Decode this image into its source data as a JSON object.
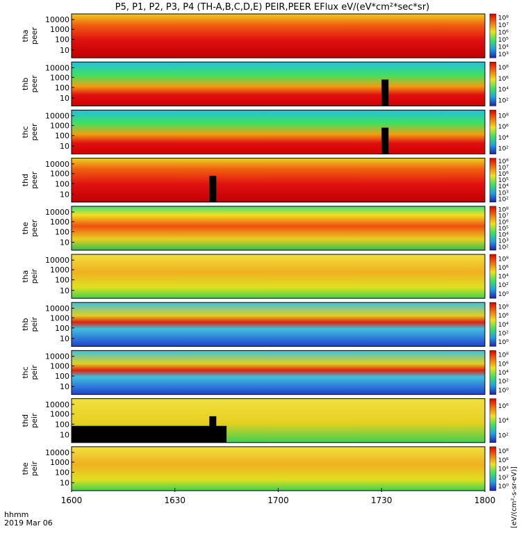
{
  "title": "P5, P1, P2, P3, P4 (TH-A,B,C,D,E) PEIR,PEER EFlux eV/(eV*cm²*sec*sr)",
  "chart_data": {
    "type": "heatmap",
    "title": "P5, P1, P2, P3, P4 (TH-A,B,C,D,E) PEIR,PEER EFlux eV/(eV*cm²*sec*sr)",
    "x_ticks": [
      "1600",
      "1630",
      "1700",
      "1730",
      "1800"
    ],
    "xlabel": "hhmm",
    "date_label": "2019 Mar 06",
    "colorbar_label": "[eV/(cm²-s-sr-eV)]",
    "y_scale": "log",
    "y_ticks": [
      "10000",
      "1000",
      "100",
      "10"
    ],
    "colors": {
      "low": "#2020d0",
      "mid": "#20d060",
      "high": "#f0e020",
      "peak": "#e01010"
    },
    "panels": [
      {
        "id": "tha_peer",
        "label": "tha peer",
        "cbar_ticks": [
          "10⁸",
          "10⁷",
          "10⁶",
          "10⁵",
          "10⁴",
          "10³"
        ],
        "pattern": "hot"
      },
      {
        "id": "thb_peer",
        "label": "thb peer",
        "cbar_ticks": [
          "10⁸",
          "10⁶",
          "10⁴",
          "10²"
        ],
        "pattern": "band",
        "gap": 1730
      },
      {
        "id": "thc_peer",
        "label": "thc peer",
        "cbar_ticks": [
          "10⁸",
          "10⁶",
          "10⁴",
          "10²"
        ],
        "pattern": "band",
        "gap": 1730
      },
      {
        "id": "thd_peer",
        "label": "thd peer",
        "cbar_ticks": [
          "10⁸",
          "10⁷",
          "10⁶",
          "10⁵",
          "10⁴",
          "10³",
          "10²"
        ],
        "pattern": "hot",
        "gap": 1640
      },
      {
        "id": "the_peer",
        "label": "the peer",
        "cbar_ticks": [
          "10⁸",
          "10⁷",
          "10⁶",
          "10⁵",
          "10⁴",
          "10³",
          "10²"
        ],
        "pattern": "warm"
      },
      {
        "id": "tha_peir",
        "label": "tha peir",
        "cbar_ticks": [
          "10⁸",
          "10⁶",
          "10⁴",
          "10²",
          "10⁰"
        ],
        "pattern": "yellow"
      },
      {
        "id": "thb_peir",
        "label": "thb peir",
        "cbar_ticks": [
          "10⁸",
          "10⁶",
          "10⁴",
          "10²",
          "10⁰"
        ],
        "pattern": "noisy"
      },
      {
        "id": "thc_peir",
        "label": "thc peir",
        "cbar_ticks": [
          "10⁸",
          "10⁶",
          "10⁴",
          "10²",
          "10⁰"
        ],
        "pattern": "noisy"
      },
      {
        "id": "thd_peir",
        "label": "thd peir",
        "cbar_ticks": [
          "10⁶",
          "10⁴",
          "10²"
        ],
        "pattern": "yellowblack",
        "gap": 1640
      },
      {
        "id": "the_peir",
        "label": "the peir",
        "cbar_ticks": [
          "10⁸",
          "10⁶",
          "10⁴",
          "10²",
          "10⁰"
        ],
        "pattern": "yellow"
      }
    ]
  }
}
